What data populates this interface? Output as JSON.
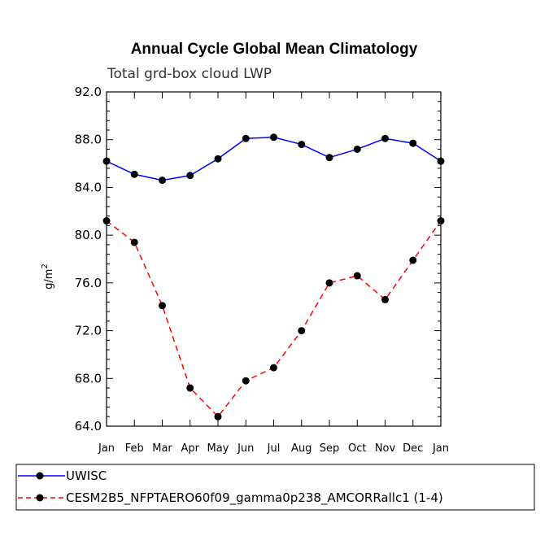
{
  "chart_data": {
    "type": "line",
    "title": "Annual Cycle Global Mean Climatology",
    "subtitle": "Total grd-box cloud LWP",
    "ylabel": "g/m",
    "ylabel_sup": "2",
    "xlabel": "",
    "ylim": [
      64.0,
      92.0
    ],
    "yticks": [
      "64.0",
      "68.0",
      "72.0",
      "76.0",
      "80.0",
      "84.0",
      "88.0",
      "92.0"
    ],
    "categories": [
      "Jan",
      "Feb",
      "Mar",
      "Apr",
      "May",
      "Jun",
      "Jul",
      "Aug",
      "Sep",
      "Oct",
      "Nov",
      "Dec",
      "Jan"
    ],
    "series": [
      {
        "name": "UWISC",
        "color": "#0000ff",
        "dash": "solid",
        "values": [
          86.2,
          85.1,
          84.6,
          85.0,
          86.4,
          88.1,
          88.2,
          87.6,
          86.5,
          87.2,
          88.1,
          87.7,
          86.2
        ]
      },
      {
        "name": "CESM2B5_NFPTAERO60f09_gamma0p238_AMCORRallc1 (1-4)",
        "color": "#ff0000",
        "dash": "dashed",
        "values": [
          81.2,
          79.4,
          74.1,
          67.2,
          64.8,
          67.8,
          68.9,
          72.0,
          76.0,
          76.6,
          74.6,
          77.9,
          81.2
        ]
      }
    ]
  }
}
